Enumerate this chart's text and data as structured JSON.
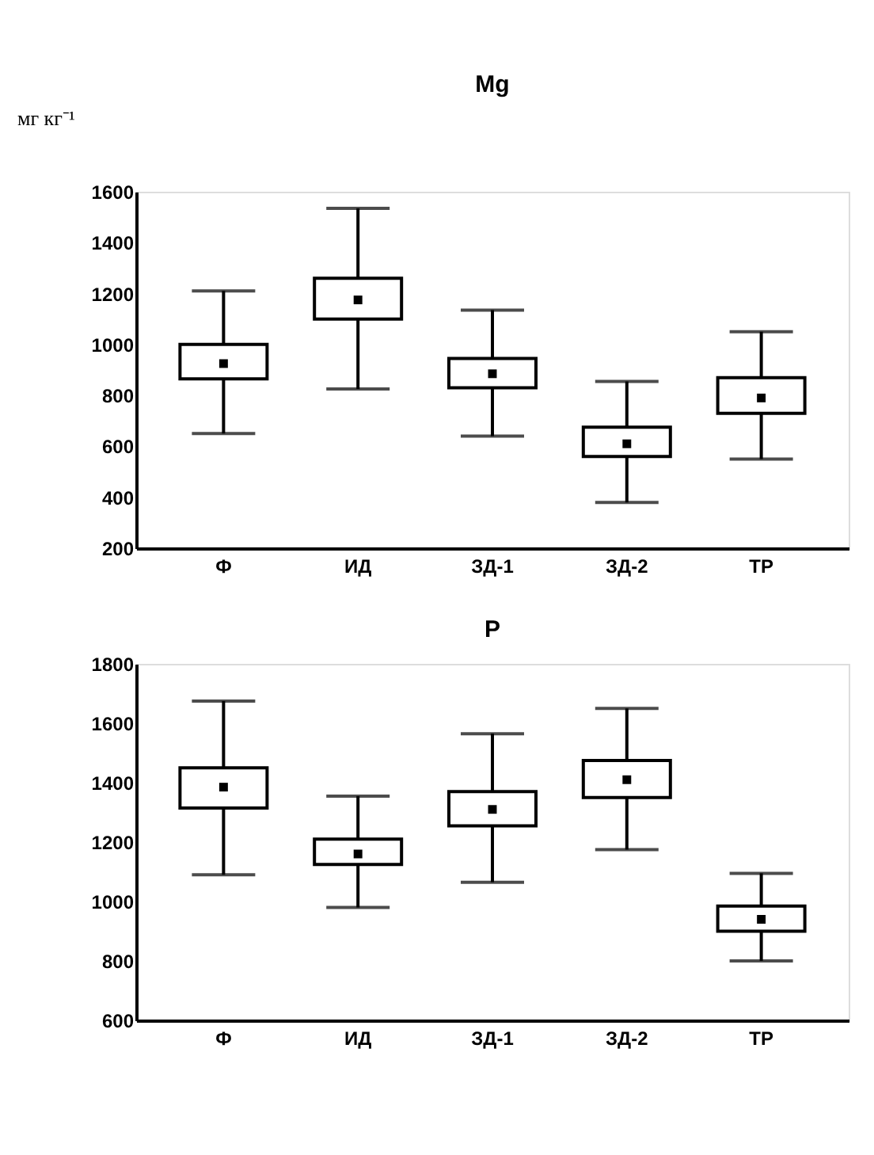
{
  "chart_data": [
    {
      "type": "box",
      "title": "Mg",
      "annotations": [
        "мг кг⁻¹"
      ],
      "categories": [
        "Ф",
        "ИД",
        "ЗД-1",
        "ЗД-2",
        "ТР"
      ],
      "ylim": [
        200,
        1600
      ],
      "yticks": [
        200,
        400,
        600,
        800,
        1000,
        1200,
        1400,
        1600
      ],
      "marker": "square",
      "boxes": [
        {
          "low": 650,
          "q1": 865,
          "median": 925,
          "q3": 1000,
          "high": 1210
        },
        {
          "low": 825,
          "q1": 1100,
          "median": 1175,
          "q3": 1260,
          "high": 1535
        },
        {
          "low": 640,
          "q1": 830,
          "median": 885,
          "q3": 945,
          "high": 1135
        },
        {
          "low": 380,
          "q1": 560,
          "median": 610,
          "q3": 675,
          "high": 855
        },
        {
          "low": 550,
          "q1": 730,
          "median": 790,
          "q3": 870,
          "high": 1050
        }
      ]
    },
    {
      "type": "box",
      "title": "P",
      "categories": [
        "Ф",
        "ИД",
        "ЗД-1",
        "ЗД-2",
        "ТР"
      ],
      "ylim": [
        600,
        1800
      ],
      "yticks": [
        600,
        800,
        1000,
        1200,
        1400,
        1600,
        1800
      ],
      "marker": "square",
      "boxes": [
        {
          "low": 1090,
          "q1": 1315,
          "median": 1385,
          "q3": 1450,
          "high": 1675
        },
        {
          "low": 980,
          "q1": 1125,
          "median": 1160,
          "q3": 1210,
          "high": 1355
        },
        {
          "low": 1065,
          "q1": 1255,
          "median": 1310,
          "q3": 1370,
          "high": 1565
        },
        {
          "low": 1175,
          "q1": 1350,
          "median": 1410,
          "q3": 1475,
          "high": 1650
        },
        {
          "low": 800,
          "q1": 900,
          "median": 940,
          "q3": 985,
          "high": 1095
        }
      ]
    }
  ]
}
